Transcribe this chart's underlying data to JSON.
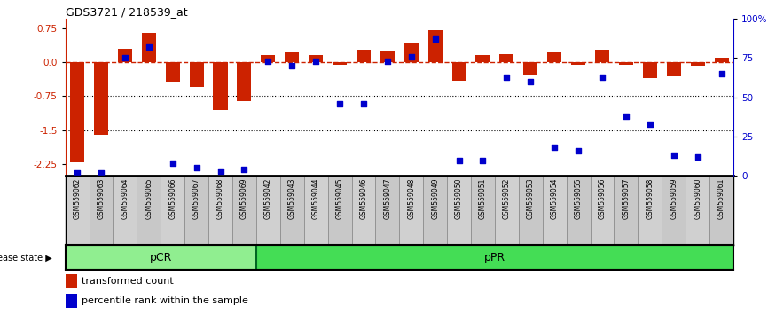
{
  "title": "GDS3721 / 218539_at",
  "samples": [
    "GSM559062",
    "GSM559063",
    "GSM559064",
    "GSM559065",
    "GSM559066",
    "GSM559067",
    "GSM559068",
    "GSM559069",
    "GSM559042",
    "GSM559043",
    "GSM559044",
    "GSM559045",
    "GSM559046",
    "GSM559047",
    "GSM559048",
    "GSM559049",
    "GSM559050",
    "GSM559051",
    "GSM559052",
    "GSM559053",
    "GSM559054",
    "GSM559055",
    "GSM559056",
    "GSM559057",
    "GSM559058",
    "GSM559059",
    "GSM559060",
    "GSM559061"
  ],
  "transformed_count": [
    -2.2,
    -1.6,
    0.3,
    0.65,
    -0.45,
    -0.55,
    -1.05,
    -0.85,
    0.15,
    0.22,
    0.15,
    -0.05,
    0.27,
    0.25,
    0.42,
    0.7,
    -0.4,
    0.15,
    0.17,
    -0.28,
    0.22,
    -0.05,
    0.27,
    -0.05,
    -0.35,
    -0.32,
    -0.08,
    0.1
  ],
  "percentile_rank": [
    2,
    2,
    75,
    82,
    8,
    5,
    3,
    4,
    73,
    70,
    73,
    46,
    46,
    73,
    76,
    87,
    10,
    10,
    63,
    60,
    18,
    16,
    63,
    38,
    33,
    13,
    12,
    65
  ],
  "pcr_count": 8,
  "ppr_count": 20,
  "bar_color": "#CC2200",
  "dot_color": "#0000CC",
  "zero_line_color": "#CC2200",
  "pcr_color": "#90EE90",
  "ppr_color": "#44DD55",
  "legend_bar": "transformed count",
  "legend_dot": "percentile rank within the sample",
  "ylim": [
    -2.5,
    0.95
  ],
  "y2lim": [
    0,
    100
  ],
  "yticks_left": [
    0.75,
    0.0,
    -0.75,
    -1.5,
    -2.25
  ],
  "yticks_right": [
    100,
    75,
    50,
    25,
    0
  ],
  "ytick_right_labels": [
    "100%",
    "75",
    "50",
    "25",
    "0"
  ],
  "hline_positions": [
    -0.75,
    -1.5
  ]
}
